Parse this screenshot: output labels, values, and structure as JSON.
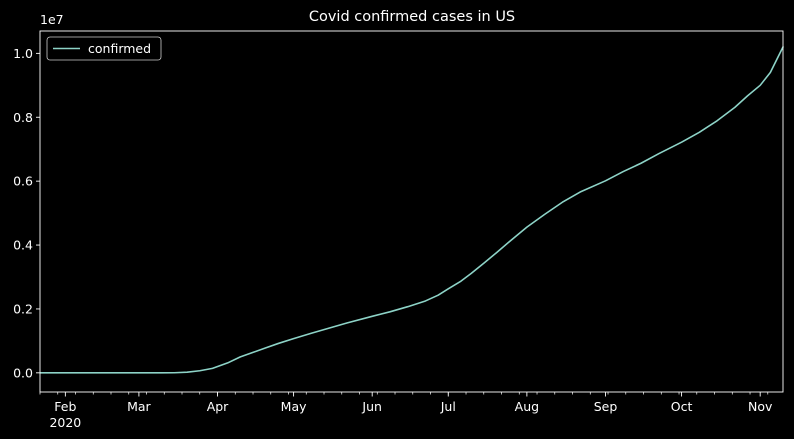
{
  "chart_data": {
    "type": "line",
    "title": "Covid confirmed cases in US",
    "xlabel": "",
    "ylabel": "",
    "y_scale_label": "1e7",
    "x_range": [
      "2020-01-22",
      "2020-11-10"
    ],
    "ylim": [
      -0.06,
      1.07
    ],
    "y_ticks": [
      0.0,
      0.2,
      0.4,
      0.6,
      0.8,
      1.0
    ],
    "y_tick_labels": [
      "0.0",
      "0.2",
      "0.4",
      "0.6",
      "0.8",
      "1.0"
    ],
    "x_ticks": [
      {
        "date": "2020-02-01",
        "label": "Feb",
        "sublabel": "2020"
      },
      {
        "date": "2020-03-01",
        "label": "Mar",
        "sublabel": ""
      },
      {
        "date": "2020-04-01",
        "label": "Apr",
        "sublabel": ""
      },
      {
        "date": "2020-05-01",
        "label": "May",
        "sublabel": ""
      },
      {
        "date": "2020-06-01",
        "label": "Jun",
        "sublabel": ""
      },
      {
        "date": "2020-07-01",
        "label": "Jul",
        "sublabel": ""
      },
      {
        "date": "2020-08-01",
        "label": "Aug",
        "sublabel": ""
      },
      {
        "date": "2020-09-01",
        "label": "Sep",
        "sublabel": ""
      },
      {
        "date": "2020-10-01",
        "label": "Oct",
        "sublabel": ""
      },
      {
        "date": "2020-11-01",
        "label": "Nov",
        "sublabel": ""
      }
    ],
    "grid": false,
    "legend_position": "top-left",
    "series": [
      {
        "name": "confirmed",
        "color": "#8dd3c7",
        "x": [
          "2020-01-22",
          "2020-02-15",
          "2020-03-10",
          "2020-03-15",
          "2020-03-20",
          "2020-03-25",
          "2020-03-30",
          "2020-04-05",
          "2020-04-10",
          "2020-04-15",
          "2020-04-20",
          "2020-04-25",
          "2020-05-01",
          "2020-05-08",
          "2020-05-15",
          "2020-05-22",
          "2020-06-01",
          "2020-06-08",
          "2020-06-15",
          "2020-06-22",
          "2020-06-27",
          "2020-07-01",
          "2020-07-06",
          "2020-07-10",
          "2020-07-15",
          "2020-07-20",
          "2020-07-25",
          "2020-08-01",
          "2020-08-08",
          "2020-08-15",
          "2020-08-22",
          "2020-09-01",
          "2020-09-08",
          "2020-09-15",
          "2020-09-22",
          "2020-10-01",
          "2020-10-08",
          "2020-10-15",
          "2020-10-22",
          "2020-10-27",
          "2020-11-01",
          "2020-11-05",
          "2020-11-10"
        ],
        "y": [
          0.0,
          0.0,
          0.0001,
          0.0003,
          0.0019,
          0.0065,
          0.014,
          0.031,
          0.05,
          0.064,
          0.078,
          0.092,
          0.107,
          0.124,
          0.14,
          0.156,
          0.177,
          0.191,
          0.207,
          0.225,
          0.243,
          0.263,
          0.287,
          0.311,
          0.343,
          0.376,
          0.41,
          0.456,
          0.496,
          0.534,
          0.566,
          0.601,
          0.63,
          0.656,
          0.686,
          0.722,
          0.753,
          0.789,
          0.831,
          0.867,
          0.9,
          0.94,
          1.02
        ]
      }
    ]
  }
}
